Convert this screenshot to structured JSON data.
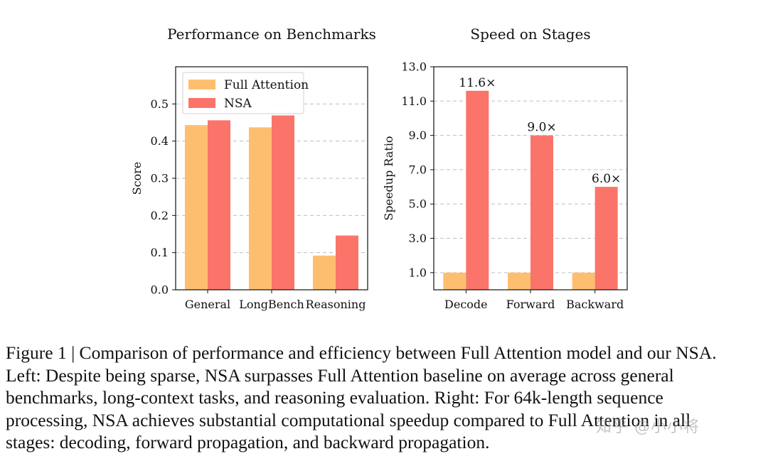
{
  "colors": {
    "full_attention": "#FDBF6F",
    "nsa": "#FA7469",
    "grid": "#bfbfbf"
  },
  "chart_data": [
    {
      "type": "bar",
      "title": "Performance on Benchmarks",
      "xlabel": "",
      "ylabel": "Score",
      "categories": [
        "General",
        "LongBench",
        "Reasoning"
      ],
      "series": [
        {
          "name": "Full Attention",
          "values": [
            0.443,
            0.437,
            0.092
          ]
        },
        {
          "name": "NSA",
          "values": [
            0.456,
            0.469,
            0.146
          ]
        }
      ],
      "ylim": [
        0,
        0.6
      ],
      "yticks": [
        "0.0",
        "0.1",
        "0.2",
        "0.3",
        "0.4",
        "0.5"
      ],
      "grid": "horizontal dashed",
      "legend": "top-left"
    },
    {
      "type": "bar",
      "title": "Speed on Stages",
      "xlabel": "",
      "ylabel": "Speedup Ratio",
      "categories": [
        "Decode",
        "Forward",
        "Backward"
      ],
      "series": [
        {
          "name": "Full Attention",
          "values": [
            1.0,
            1.0,
            1.0
          ]
        },
        {
          "name": "NSA",
          "values": [
            11.6,
            9.0,
            6.0
          ],
          "labels": [
            "11.6×",
            "9.0×",
            "6.0×"
          ]
        }
      ],
      "ylim": [
        0,
        13.0
      ],
      "yticks": [
        "1.0",
        "3.0",
        "5.0",
        "7.0",
        "9.0",
        "11.0",
        "13.0"
      ],
      "grid": "horizontal dashed",
      "legend": "none"
    }
  ],
  "caption": {
    "lines": [
      "Figure 1 | Comparison of performance and efficiency between Full Attention model and our NSA.",
      "Left: Despite being sparse, NSA surpasses Full Attention baseline on average across general",
      "benchmarks, long-context tasks, and reasoning evaluation. Right: For 64k-length sequence",
      "processing, NSA achieves substantial computational speedup compared to Full Attention in all",
      "stages: decoding, forward propagation, and backward propagation."
    ]
  },
  "watermark": "知乎 @小小将"
}
